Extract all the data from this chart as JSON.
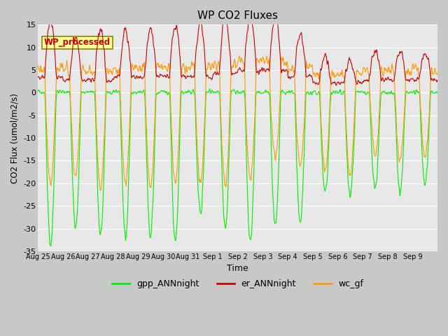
{
  "title": "WP CO2 Fluxes",
  "xlabel": "Time",
  "ylabel": "CO2 Flux (umol/m2/s)",
  "ylim": [
    -35,
    15
  ],
  "fig_bg_color": "#c8c8c8",
  "plot_bg_color": "#e8e8e8",
  "annotation_text": "WP_processed",
  "annotation_color": "#cc0000",
  "annotation_bg": "#ffff99",
  "annotation_border": "#888800",
  "line_gpp_color": "#00ee00",
  "line_er_color": "#cc0000",
  "line_wc_color": "#ff9900",
  "legend_labels": [
    "gpp_ANNnight",
    "er_ANNnight",
    "wc_gf"
  ],
  "xtick_labels": [
    "Aug 25",
    "Aug 26",
    "Aug 27",
    "Aug 28",
    "Aug 29",
    "Aug 30",
    "Aug 31",
    "Sep 1",
    "Sep 2",
    "Sep 3",
    "Sep 4",
    "Sep 5",
    "Sep 6",
    "Sep 7",
    "Sep 8",
    "Sep 9"
  ],
  "yticks": [
    -35,
    -30,
    -25,
    -20,
    -15,
    -10,
    -5,
    0,
    5,
    10,
    15
  ],
  "n_points": 960,
  "days": 16,
  "seed": 42
}
